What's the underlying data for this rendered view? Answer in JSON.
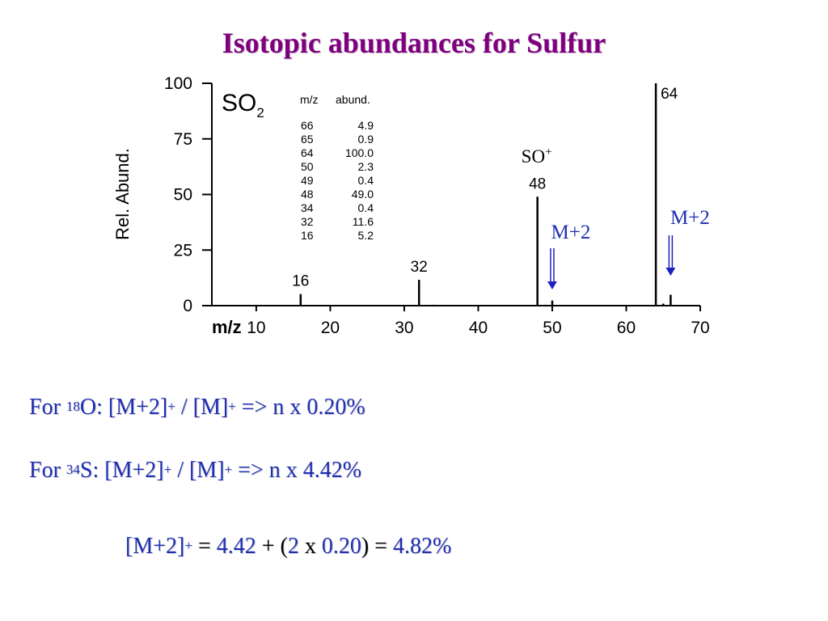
{
  "title": "Isotopic abundances for Sulfur",
  "chart_data": {
    "type": "bar",
    "compound": "SO",
    "compound_sub": "2",
    "ylabel": "Rel. Abund.",
    "xlabel": "m/z",
    "xlim": [
      4,
      70
    ],
    "ylim": [
      0,
      100
    ],
    "xticks": [
      10,
      20,
      30,
      40,
      50,
      60,
      70
    ],
    "yticks": [
      0,
      25,
      50,
      75,
      100
    ],
    "peaks": [
      {
        "x": 16,
        "y": 5.2,
        "label": "16"
      },
      {
        "x": 32,
        "y": 11.6,
        "label": "32"
      },
      {
        "x": 34,
        "y": 0.4,
        "label": ""
      },
      {
        "x": 48,
        "y": 49.0,
        "label": "48"
      },
      {
        "x": 49,
        "y": 0.4,
        "label": ""
      },
      {
        "x": 50,
        "y": 2.3,
        "label": ""
      },
      {
        "x": 64,
        "y": 100.0,
        "label": "64"
      },
      {
        "x": 65,
        "y": 0.9,
        "label": ""
      },
      {
        "x": 66,
        "y": 4.9,
        "label": ""
      }
    ],
    "table": {
      "headers": [
        "m/z",
        "abund."
      ],
      "rows": [
        [
          "66",
          "4.9"
        ],
        [
          "65",
          "0.9"
        ],
        [
          "64",
          "100.0"
        ],
        [
          "50",
          "2.3"
        ],
        [
          "49",
          "0.4"
        ],
        [
          "48",
          "49.0"
        ],
        [
          "34",
          "0.4"
        ],
        [
          "32",
          "11.6"
        ],
        [
          "16",
          "5.2"
        ]
      ]
    },
    "annotations": [
      {
        "text": "SO",
        "sup": "+",
        "x": 48
      },
      {
        "text": "M+2",
        "x": 50
      },
      {
        "text": "M+2",
        "x": 66
      }
    ]
  },
  "equations": {
    "line1": {
      "pre": "For ",
      "iso": "18",
      "elem": "O: [M+2]",
      "plus1": "+",
      "mid": " / [M]",
      "plus2": "+",
      "post": " => n x 0.20%"
    },
    "line2": {
      "pre": "For ",
      "iso": "34",
      "elem": "S: [M+2]",
      "plus1": "+",
      "mid": " / [M]",
      "plus2": "+",
      "post": " => n x 4.42%"
    },
    "line3": {
      "a": "[M+2]",
      "plus": "+",
      "eq1": " = ",
      "v1": "4.42",
      "op1": " + (",
      "v2": "2",
      "op2": " x ",
      "v3": "0.20",
      "op3": ") = ",
      "v4": "4.82%"
    }
  },
  "colors": {
    "title": "#7f007f",
    "text_blue": "#1f2fb0",
    "arrow": "#2020c0"
  }
}
